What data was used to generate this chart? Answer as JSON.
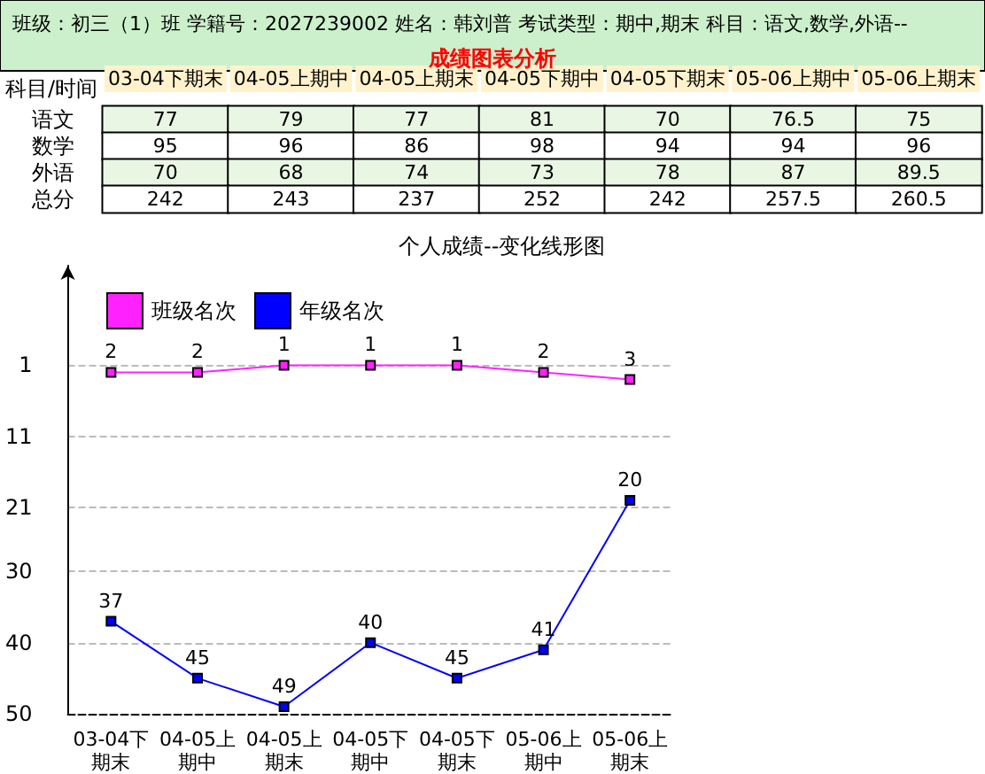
{
  "chart_data": [
    {
      "type": "heatmap",
      "title": "班级：初三（1）班 学籍号：2027239002 姓名：韩刘普 考试类型：期中,期末 科目：语文,数学,外语--",
      "subtitle": "成绩图表分析",
      "ylabel": "科目/时间",
      "categories": [
        "03-04下期末",
        "04-05上期中",
        "04-05上期末",
        "04-05下期中",
        "04-05下期末",
        "05-06上期中",
        "05-06上期末"
      ],
      "y_categories": [
        "语文",
        "数学",
        "外语",
        "总分"
      ],
      "cells": [
        [
          77,
          79,
          77,
          81,
          70,
          76.5,
          75
        ],
        [
          95,
          96,
          86,
          98,
          94,
          94,
          96
        ],
        [
          70,
          68,
          74,
          73,
          78,
          87,
          89.5
        ],
        [
          242,
          243,
          237,
          252,
          242,
          257.5,
          260.5
        ]
      ],
      "data_labels": true
    },
    {
      "type": "line",
      "title": "个人成绩--变化线形图",
      "categories": [
        "03-04下期末",
        "04-05上期中",
        "04-05上期末",
        "04-05下期中",
        "04-05下期末",
        "05-06上期中",
        "05-06上期末"
      ],
      "series": [
        {
          "name": "班级名次",
          "color": "#ff22ff",
          "values": [
            2,
            2,
            1,
            1,
            1,
            2,
            3
          ]
        },
        {
          "name": "年级名次",
          "color": "#0000ff",
          "values": [
            37,
            45,
            49,
            40,
            45,
            41,
            20
          ]
        }
      ],
      "ylim": [
        50,
        -13
      ],
      "yticks": [
        1,
        11,
        21,
        30,
        40,
        50
      ],
      "grid": "y",
      "legend": "top left",
      "marker": "square",
      "data_labels": true
    }
  ]
}
